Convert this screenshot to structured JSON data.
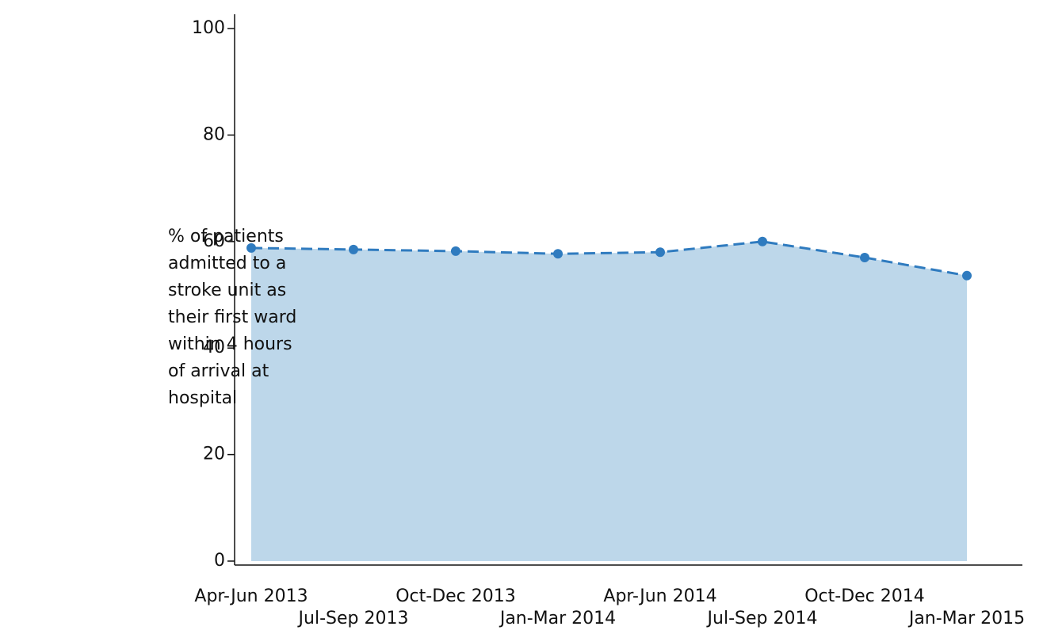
{
  "chart_data": {
    "type": "area",
    "y_label_lines": [
      "% of patients",
      "admitted to a",
      "stroke unit as",
      "their first ward",
      "within 4 hours",
      "of arrival at",
      "hospital"
    ],
    "categories": [
      "Apr-Jun 2013",
      "Jul-Sep 2013",
      "Oct-Dec 2013",
      "Jan-Mar 2014",
      "Apr-Jun 2014",
      "Jul-Sep 2014",
      "Oct-Dec 2014",
      "Jan-Mar 2015"
    ],
    "values": [
      58.8,
      58.5,
      58.2,
      57.7,
      58.0,
      60.0,
      57.0,
      53.6
    ],
    "color": "#2f7bbf",
    "fill_color": "#bdd7ea",
    "ylim": [
      0,
      100
    ],
    "yticks": [
      0,
      20,
      40,
      60,
      80,
      100
    ],
    "grid": false
  }
}
